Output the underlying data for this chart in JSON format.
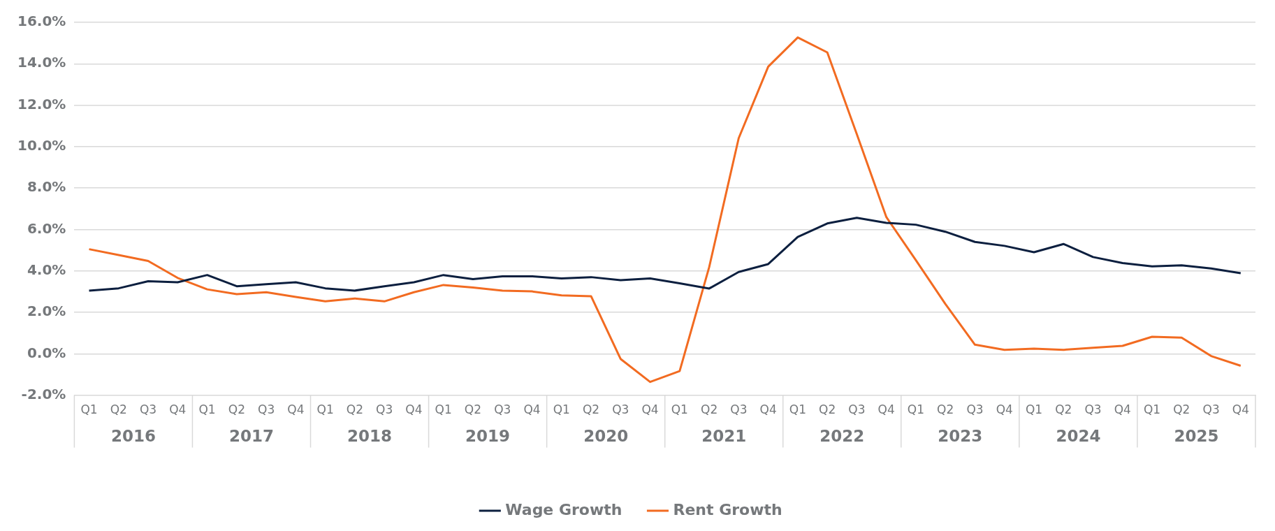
{
  "chart_data": {
    "type": "line",
    "categories": [
      "Q1",
      "Q2",
      "Q3",
      "Q4",
      "Q1",
      "Q2",
      "Q3",
      "Q4",
      "Q1",
      "Q2",
      "Q3",
      "Q4",
      "Q1",
      "Q2",
      "Q3",
      "Q4",
      "Q1",
      "Q2",
      "Q3",
      "Q4",
      "Q1",
      "Q2",
      "Q3",
      "Q4",
      "Q1",
      "Q2",
      "Q3",
      "Q4",
      "Q1",
      "Q2",
      "Q3",
      "Q4",
      "Q1",
      "Q2",
      "Q3",
      "Q4",
      "Q1",
      "Q2",
      "Q3",
      "Q4"
    ],
    "series": [
      {
        "name": "Wage Growth",
        "color": "#0c1f3f",
        "values": [
          3.05,
          3.16,
          3.5,
          3.45,
          3.8,
          3.26,
          3.36,
          3.45,
          3.16,
          3.05,
          3.26,
          3.45,
          3.8,
          3.6,
          3.74,
          3.74,
          3.64,
          3.7,
          3.55,
          3.64,
          3.4,
          3.15,
          3.95,
          4.33,
          5.64,
          6.29,
          6.56,
          6.32,
          6.23,
          5.89,
          5.4,
          5.21,
          4.9,
          5.3,
          4.67,
          4.38,
          4.22,
          4.27,
          4.12,
          3.89
        ]
      },
      {
        "name": "Rent Growth",
        "color": "#f26b21",
        "values": [
          5.05,
          4.77,
          4.48,
          3.66,
          3.11,
          2.88,
          2.97,
          2.74,
          2.53,
          2.67,
          2.53,
          2.97,
          3.32,
          3.2,
          3.05,
          3.01,
          2.82,
          2.78,
          -0.25,
          -1.36,
          -0.84,
          4.18,
          10.41,
          13.86,
          15.27,
          14.55,
          10.6,
          6.6,
          4.52,
          2.4,
          0.44,
          0.19,
          0.25,
          0.19,
          0.29,
          0.38,
          0.82,
          0.78,
          -0.11,
          -0.58
        ]
      }
    ],
    "ylim": [
      -2,
      16
    ],
    "yticks": [
      {
        "value": -2,
        "label": "-2.0%"
      },
      {
        "value": 0,
        "label": "0.0%"
      },
      {
        "value": 2,
        "label": "2.0%"
      },
      {
        "value": 4,
        "label": "4.0%"
      },
      {
        "value": 6,
        "label": "6.0%"
      },
      {
        "value": 8,
        "label": "8.0%"
      },
      {
        "value": 10,
        "label": "10.0%"
      },
      {
        "value": 12,
        "label": "12.0%"
      },
      {
        "value": 14,
        "label": "14.0%"
      },
      {
        "value": 16,
        "label": "16.0%"
      }
    ],
    "annotations": [
      "2016",
      "2017",
      "2018",
      "2019",
      "2020",
      "2021",
      "2022",
      "2023",
      "2024",
      "2025"
    ],
    "grid": "y",
    "legend": "bottom",
    "marker": "none"
  }
}
